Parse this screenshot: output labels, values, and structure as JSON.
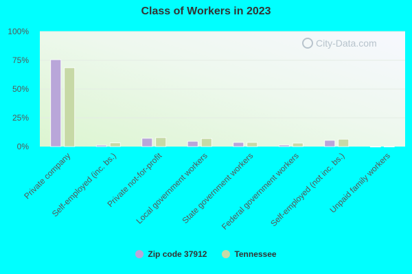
{
  "chart_data": {
    "type": "bar",
    "title": "Class of Workers in 2023",
    "categories": [
      "Private company",
      "Self-employed (inc. bs.)",
      "Private not-for-profit",
      "Local government workers",
      "State government workers",
      "Federal government workers",
      "Self-employed (not inc. bs.)",
      "Unpaid family workers"
    ],
    "series": [
      {
        "name": "Zip code 37912",
        "color": "#b9a6d9",
        "values": [
          75.5,
          1.2,
          7.2,
          4.6,
          3.6,
          1.3,
          5.4,
          0.1
        ]
      },
      {
        "name": "Tennessee",
        "color": "#c7d9a6",
        "values": [
          68.5,
          3.2,
          7.8,
          7.0,
          3.6,
          3.0,
          6.4,
          0.2
        ]
      }
    ],
    "yticks": [
      "0%",
      "25%",
      "50%",
      "75%",
      "100%"
    ],
    "ylim": [
      0,
      100
    ],
    "grid": true,
    "legend_position": "bottom"
  },
  "watermark": {
    "text": "City-Data.com",
    "icon": "magnifier-icon"
  }
}
